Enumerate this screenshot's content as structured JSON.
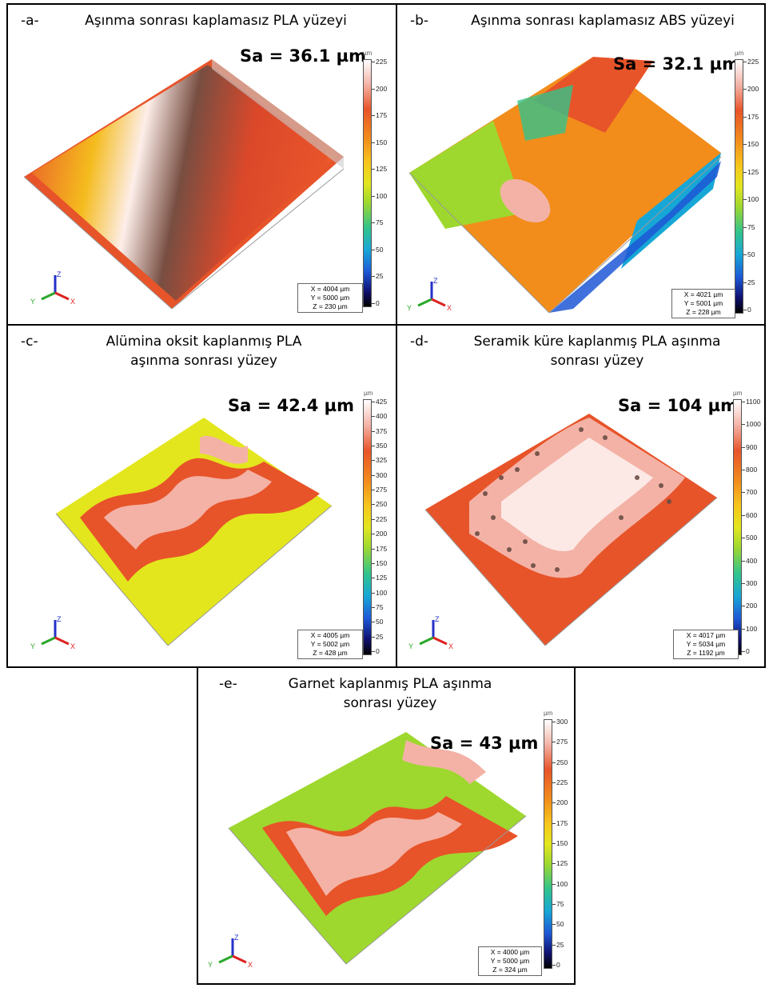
{
  "unit": "µm",
  "panels": {
    "a": {
      "label": "-a-",
      "title": "Aşınma sonrası kaplamasız PLA yüzeyi",
      "sa": "Sa = 36.1 µm",
      "ticks": [
        "225",
        "200",
        "175",
        "150",
        "125",
        "100",
        "75",
        "50",
        "25",
        "0"
      ],
      "dims": {
        "x": "X = 4004 µm",
        "y": "Y = 5000 µm",
        "z": "Z = 230 µm"
      }
    },
    "b": {
      "label": "-b-",
      "title": "Aşınma sonrası kaplamasız ABS yüzeyi",
      "sa": "Sa = 32.1 µm",
      "ticks": [
        "225",
        "200",
        "175",
        "150",
        "125",
        "100",
        "75",
        "50",
        "25",
        "0"
      ],
      "dims": {
        "x": "X = 4021 µm",
        "y": "Y = 5001 µm",
        "z": "Z = 228 µm"
      }
    },
    "c": {
      "label": "-c-",
      "title": "Alümina oksit kaplanmış PLA aşınma sonrası yüzey",
      "sa": "Sa = 42.4 µm",
      "ticks": [
        "425",
        "400",
        "375",
        "350",
        "325",
        "300",
        "275",
        "250",
        "225",
        "200",
        "175",
        "150",
        "125",
        "100",
        "75",
        "50",
        "25",
        "0"
      ],
      "dims": {
        "x": "X = 4005 µm",
        "y": "Y = 5002 µm",
        "z": "Z = 428 µm"
      }
    },
    "d": {
      "label": "-d-",
      "title": "Seramik küre kaplanmış PLA aşınma sonrası yüzey",
      "sa": "Sa = 104 µm",
      "ticks": [
        "1100",
        "1000",
        "900",
        "800",
        "700",
        "600",
        "500",
        "400",
        "300",
        "200",
        "100",
        "0"
      ],
      "dims": {
        "x": "X = 4017 µm",
        "y": "Y = 5034 µm",
        "z": "Z = 1192 µm"
      }
    },
    "e": {
      "label": "-e-",
      "title": "Garnet kaplanmış PLA aşınma sonrası yüzey",
      "sa": "Sa = 43 µm",
      "ticks": [
        "300",
        "275",
        "250",
        "225",
        "200",
        "175",
        "150",
        "125",
        "100",
        "75",
        "50",
        "25",
        "0"
      ],
      "dims": {
        "x": "X = 4000 µm",
        "y": "Y = 5000 µm",
        "z": "Z = 324 µm"
      }
    }
  },
  "colors": {
    "scale": [
      "#ffffff",
      "#f3b2a5",
      "#e8542a",
      "#f28d1c",
      "#f6c71c",
      "#e3e61d",
      "#9ed82f",
      "#33c38b",
      "#17a7d6",
      "#1d57d6",
      "#101070",
      "#000000"
    ]
  }
}
